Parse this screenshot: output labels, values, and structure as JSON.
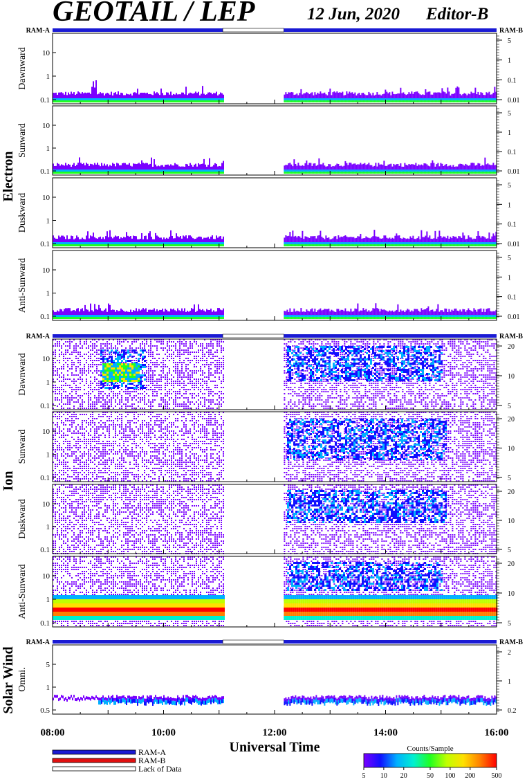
{
  "header": {
    "title": "GEOTAIL / LEP",
    "date": "12 Jun, 2020",
    "editor": "Editor-B"
  },
  "colors": {
    "ram_a": "#1a1ad4",
    "ram_b": "#e01010",
    "no_data_fill": "#ffffff",
    "colorbar": [
      "#7a00ff",
      "#1010ff",
      "#00b0ff",
      "#00f0d0",
      "#20ff20",
      "#c0ff00",
      "#ffe000",
      "#ff8000",
      "#ff0000"
    ]
  },
  "ram_labels": {
    "left": "RAM-A",
    "right": "RAM-B"
  },
  "group_labels": {
    "electron": "Electron",
    "ion": "Ion",
    "solar_wind": "Solar Wind"
  },
  "x_axis": {
    "label": "Universal Time",
    "ticks": [
      "08:00",
      "10:00",
      "12:00",
      "14:00",
      "16:00"
    ]
  },
  "legend": {
    "items": [
      {
        "label": "RAM-A",
        "color": "#1a1ad4"
      },
      {
        "label": "RAM-B",
        "color": "#e01010"
      },
      {
        "label": "Lack of Data",
        "color": "#ffffff"
      }
    ]
  },
  "colorbar": {
    "title": "Counts/Sample",
    "ticks": [
      "5",
      "10",
      "20",
      "50",
      "100",
      "200",
      "500"
    ]
  },
  "chart_data": {
    "type": "heatmap",
    "x_range_hours": [
      8,
      16
    ],
    "data_gap_ut": [
      "11:04",
      "12:10"
    ],
    "ram_bar": {
      "ram_a_ut": [
        [
          "08:00",
          "11:04"
        ],
        [
          "12:10",
          "16:00"
        ]
      ],
      "ram_b_ut": []
    },
    "groups": [
      {
        "name": "Electron",
        "panels": [
          {
            "label": "Dawnward",
            "left_ticks": [
              "10",
              "1",
              "0.1"
            ],
            "right_ticks": [
              "5",
              "1",
              "0.1",
              "0.01"
            ]
          },
          {
            "label": "Sunward",
            "left_ticks": [
              "10",
              "1",
              "0.1"
            ],
            "right_ticks": [
              "5",
              "1",
              "0.1",
              "0.01"
            ]
          },
          {
            "label": "Duskward",
            "left_ticks": [
              "10",
              "1",
              "0.1"
            ],
            "right_ticks": [
              "5",
              "1",
              "0.1",
              "0.01"
            ]
          },
          {
            "label": "Anti-Sunward",
            "left_ticks": [
              "10",
              "1",
              "0.1"
            ],
            "right_ticks": [
              "5",
              "1",
              "0.1",
              "0.01"
            ]
          }
        ]
      },
      {
        "name": "Ion",
        "panels": [
          {
            "label": "Dawnward",
            "left_ticks": [
              "10",
              "1",
              "0.1"
            ],
            "right_ticks": [
              "20",
              "10",
              "5"
            ]
          },
          {
            "label": "Sunward",
            "left_ticks": [
              "10",
              "1",
              "0.1"
            ],
            "right_ticks": [
              "20",
              "10",
              "5"
            ]
          },
          {
            "label": "Duskward",
            "left_ticks": [
              "10",
              "1",
              "0.1"
            ],
            "right_ticks": [
              "20",
              "10",
              "5"
            ]
          },
          {
            "label": "Anti-Sunward",
            "left_ticks": [
              "10",
              "1",
              "0.1"
            ],
            "right_ticks": [
              "20",
              "10",
              "5"
            ]
          }
        ]
      },
      {
        "name": "Solar Wind",
        "panels": [
          {
            "label": "Omni.",
            "left_ticks": [
              "5",
              "1",
              "0.5"
            ],
            "right_ticks": [
              "2",
              "1",
              "0.2"
            ]
          }
        ]
      }
    ]
  }
}
